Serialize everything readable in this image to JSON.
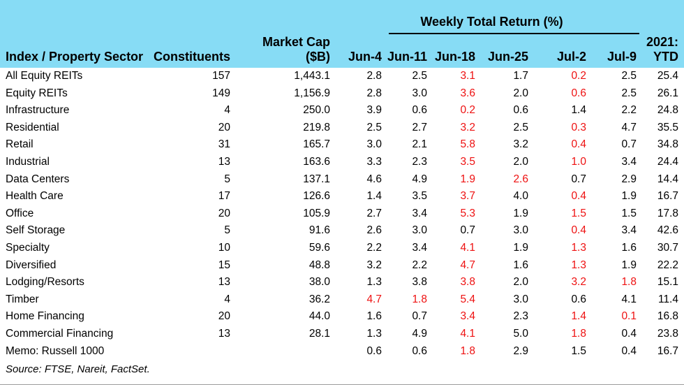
{
  "colors": {
    "header_background": "#87DCF5",
    "negative_value": "#EE1111",
    "text": "#000000",
    "bottom_rule": "#9b9b9b"
  },
  "header": {
    "group_title": "Weekly Total Return (%)",
    "col_sector": "Index / Property Sector",
    "col_constituents": "Constituents",
    "col_marketcap_line1": "Market Cap",
    "col_marketcap_line2": "($B)",
    "week_cols": [
      "Jun-4",
      "Jun-11",
      "Jun-18",
      "Jun-25",
      "Jul-2",
      "Jul-9"
    ],
    "ytd_line1": "2021:",
    "ytd_line2": "YTD"
  },
  "chart_data": {
    "type": "table",
    "title": "Weekly Total Return (%)",
    "columns": [
      "Index / Property Sector",
      "Constituents",
      "Market Cap ($B)",
      "Jun-4",
      "Jun-11",
      "Jun-18",
      "Jun-25",
      "Jul-2",
      "Jul-9",
      "2021: YTD"
    ],
    "rows": [
      {
        "sector": "All Equity REITs",
        "constituents": "157",
        "market_cap": "1,443.1",
        "values": [
          "2.8",
          "2.5",
          "3.1",
          "1.7",
          "0.2",
          "2.5",
          "25.4"
        ],
        "red": [
          false,
          false,
          true,
          false,
          true,
          false,
          false
        ]
      },
      {
        "sector": "Equity REITs",
        "constituents": "149",
        "market_cap": "1,156.9",
        "values": [
          "2.8",
          "3.0",
          "3.6",
          "2.0",
          "0.6",
          "2.5",
          "26.1"
        ],
        "red": [
          false,
          false,
          true,
          false,
          true,
          false,
          false
        ]
      },
      {
        "sector": "Infrastructure",
        "constituents": "4",
        "market_cap": "250.0",
        "values": [
          "3.9",
          "0.6",
          "0.2",
          "0.6",
          "1.4",
          "2.2",
          "24.8"
        ],
        "red": [
          false,
          false,
          true,
          false,
          false,
          false,
          false
        ]
      },
      {
        "sector": "Residential",
        "constituents": "20",
        "market_cap": "219.8",
        "values": [
          "2.5",
          "2.7",
          "3.2",
          "2.5",
          "0.3",
          "4.7",
          "35.5"
        ],
        "red": [
          false,
          false,
          true,
          false,
          true,
          false,
          false
        ]
      },
      {
        "sector": "Retail",
        "constituents": "31",
        "market_cap": "165.7",
        "values": [
          "3.0",
          "2.1",
          "5.8",
          "3.2",
          "0.4",
          "0.7",
          "34.8"
        ],
        "red": [
          false,
          false,
          true,
          false,
          true,
          false,
          false
        ]
      },
      {
        "sector": "Industrial",
        "constituents": "13",
        "market_cap": "163.6",
        "values": [
          "3.3",
          "2.3",
          "3.5",
          "2.0",
          "1.0",
          "3.4",
          "24.4"
        ],
        "red": [
          false,
          false,
          true,
          false,
          true,
          false,
          false
        ]
      },
      {
        "sector": "Data Centers",
        "constituents": "5",
        "market_cap": "137.1",
        "values": [
          "4.6",
          "4.9",
          "1.9",
          "2.6",
          "0.7",
          "2.9",
          "14.4"
        ],
        "red": [
          false,
          false,
          true,
          true,
          false,
          false,
          false
        ]
      },
      {
        "sector": "Health Care",
        "constituents": "17",
        "market_cap": "126.6",
        "values": [
          "1.4",
          "3.5",
          "3.7",
          "4.0",
          "0.4",
          "1.9",
          "16.7"
        ],
        "red": [
          false,
          false,
          true,
          false,
          true,
          false,
          false
        ]
      },
      {
        "sector": "Office",
        "constituents": "20",
        "market_cap": "105.9",
        "values": [
          "2.7",
          "3.4",
          "5.3",
          "1.9",
          "1.5",
          "1.5",
          "17.8"
        ],
        "red": [
          false,
          false,
          true,
          false,
          true,
          false,
          false
        ]
      },
      {
        "sector": "Self Storage",
        "constituents": "5",
        "market_cap": "91.6",
        "values": [
          "2.6",
          "3.0",
          "0.7",
          "3.0",
          "0.4",
          "3.4",
          "42.6"
        ],
        "red": [
          false,
          false,
          false,
          false,
          true,
          false,
          false
        ]
      },
      {
        "sector": "Specialty",
        "constituents": "10",
        "market_cap": "59.6",
        "values": [
          "2.2",
          "3.4",
          "4.1",
          "1.9",
          "1.3",
          "1.6",
          "30.7"
        ],
        "red": [
          false,
          false,
          true,
          false,
          true,
          false,
          false
        ]
      },
      {
        "sector": "Diversified",
        "constituents": "15",
        "market_cap": "48.8",
        "values": [
          "3.2",
          "2.2",
          "4.7",
          "1.6",
          "1.3",
          "1.9",
          "22.2"
        ],
        "red": [
          false,
          false,
          true,
          false,
          true,
          false,
          false
        ]
      },
      {
        "sector": "Lodging/Resorts",
        "constituents": "13",
        "market_cap": "38.0",
        "values": [
          "1.3",
          "3.8",
          "3.8",
          "2.0",
          "3.2",
          "1.8",
          "15.1"
        ],
        "red": [
          false,
          false,
          true,
          false,
          true,
          true,
          false
        ]
      },
      {
        "sector": "Timber",
        "constituents": "4",
        "market_cap": "36.2",
        "values": [
          "4.7",
          "1.8",
          "5.4",
          "3.0",
          "0.6",
          "4.1",
          "11.4"
        ],
        "red": [
          true,
          true,
          true,
          false,
          false,
          false,
          false
        ]
      },
      {
        "sector": "Home Financing",
        "constituents": "20",
        "market_cap": "44.0",
        "values": [
          "1.6",
          "0.7",
          "3.4",
          "2.3",
          "1.4",
          "0.1",
          "16.8"
        ],
        "red": [
          false,
          false,
          true,
          false,
          true,
          true,
          false
        ]
      },
      {
        "sector": "Commercial Financing",
        "constituents": "13",
        "market_cap": "28.1",
        "values": [
          "1.3",
          "4.9",
          "4.1",
          "5.0",
          "1.8",
          "0.4",
          "23.8"
        ],
        "red": [
          false,
          false,
          true,
          false,
          true,
          false,
          false
        ]
      },
      {
        "sector": "Memo: Russell 1000",
        "constituents": "",
        "market_cap": "",
        "values": [
          "0.6",
          "0.6",
          "1.8",
          "2.9",
          "1.5",
          "0.4",
          "16.7"
        ],
        "red": [
          false,
          false,
          true,
          false,
          false,
          false,
          false
        ]
      }
    ]
  },
  "footer": {
    "source": "Source: FTSE, Nareit, FactSet."
  }
}
